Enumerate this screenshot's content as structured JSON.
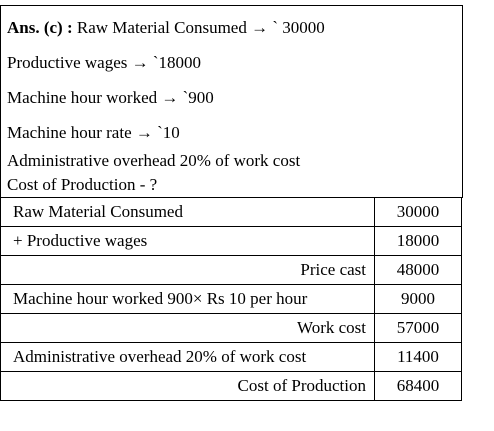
{
  "header": {
    "ans_label": "Ans. (c) :",
    "line1": "Raw Material Consumed → ` 30000",
    "line2": "Productive wages → `18000",
    "line3": "Machine hour worked → `900",
    "line4": "Machine  hour rate → `10",
    "line5": "Administrative overhead 20% of work cost",
    "line6": "Cost of Production - ?"
  },
  "table": {
    "rows": [
      {
        "label": "Raw Material Consumed",
        "value": "30000"
      },
      {
        "label": "+ Productive wages",
        "value": "18000"
      },
      {
        "label": "Price cast",
        "value": "48000"
      },
      {
        "label": "Machine hour worked 900× Rs 10 per hour",
        "value": "9000"
      },
      {
        "label": "Work cost",
        "value": "57000"
      },
      {
        "label": "Administrative overhead 20% of work cost",
        "value": "11400"
      },
      {
        "label": "Cost of Production",
        "value": "68400"
      }
    ]
  }
}
